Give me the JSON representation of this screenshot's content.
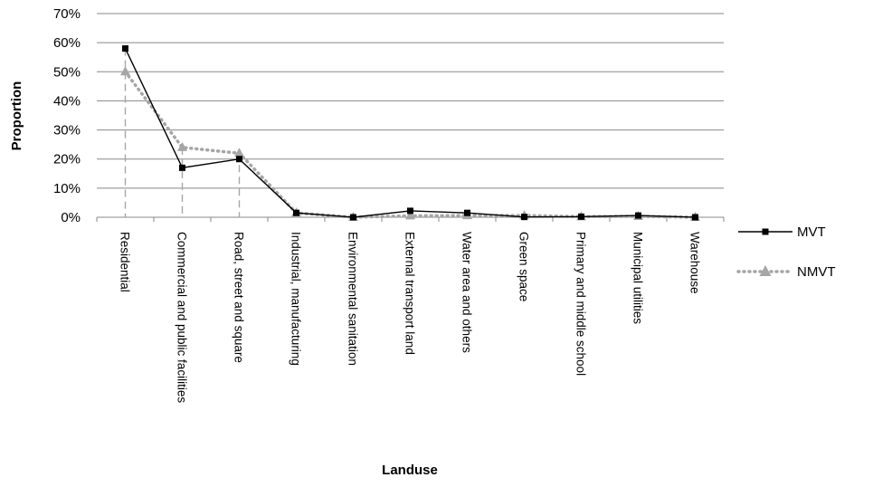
{
  "chart_data": {
    "type": "line",
    "xlabel": "Landuse",
    "ylabel": "Proportion",
    "ylim": [
      0,
      70
    ],
    "ytick_step": 10,
    "y_tick_labels": [
      "0%",
      "10%",
      "20%",
      "30%",
      "40%",
      "50%",
      "60%",
      "70%"
    ],
    "grid": true,
    "legend_position": "right",
    "categories": [
      "Residential",
      "Commercial and public facilities",
      "Road, street and square",
      "Industrial, manufacturing",
      "Environmental sanitation",
      "External transport land",
      "Water area and others",
      "Green space",
      "Primary and middle school",
      "Municipal utilities",
      "Warehouse"
    ],
    "series": [
      {
        "name": "MVT",
        "values": [
          58,
          17,
          20,
          1.5,
          0,
          2.2,
          1.5,
          0.1,
          0.2,
          0.6,
          0
        ],
        "color": "#000000",
        "line_style": "solid",
        "marker": "square"
      },
      {
        "name": "NMVT",
        "values": [
          50,
          24,
          22,
          1.5,
          0,
          0.5,
          0.6,
          0.6,
          0.2,
          0.3,
          0
        ],
        "color": "#a6a6a6",
        "line_style": "dotted",
        "marker": "triangle"
      }
    ],
    "drop_lines_color": "#a6a6a6"
  }
}
